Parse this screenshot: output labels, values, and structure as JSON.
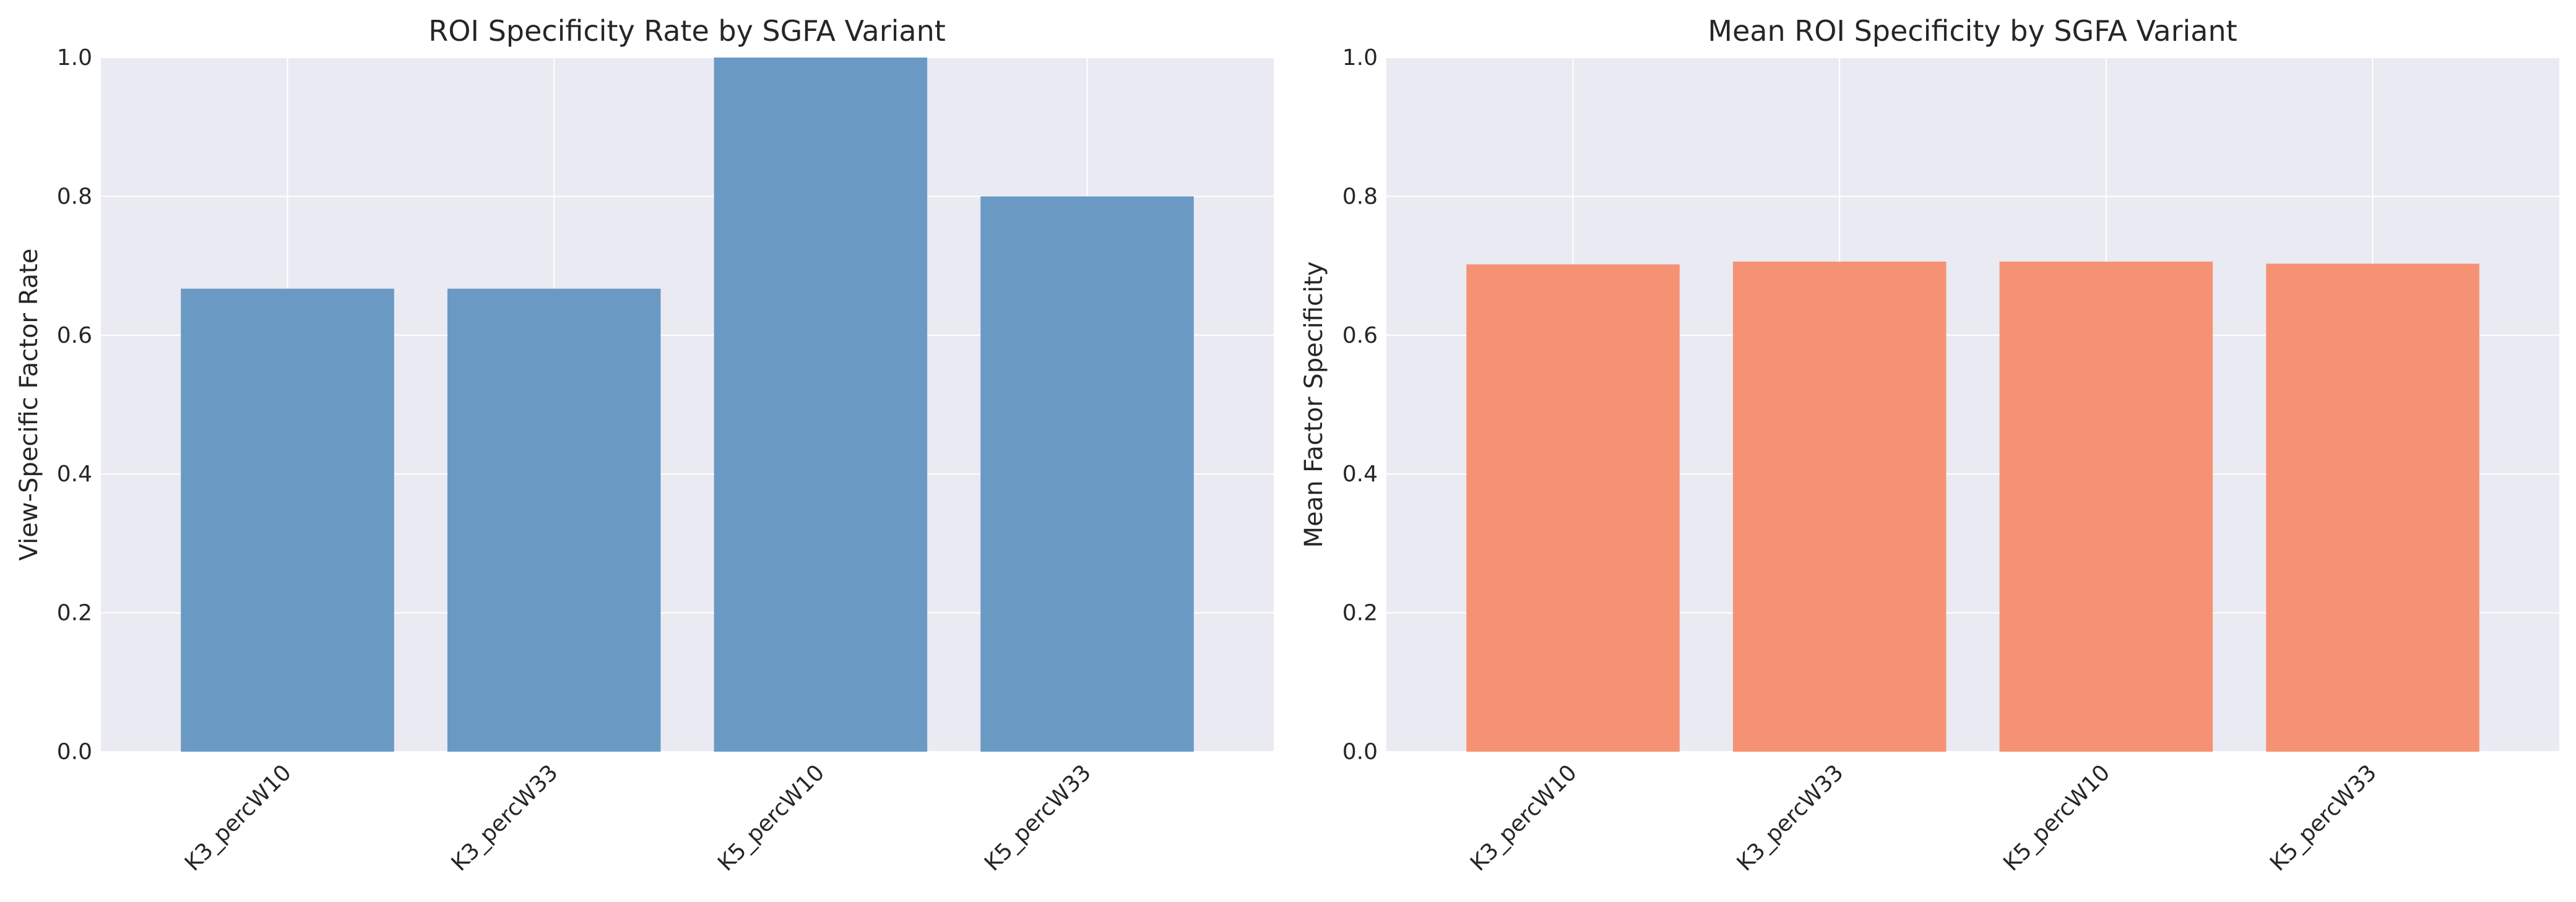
{
  "chart_data": [
    {
      "type": "bar",
      "title": "ROI Specificity Rate by SGFA Variant",
      "xlabel": "",
      "ylabel": "View-Specific Factor Rate",
      "categories": [
        "K3_percW10",
        "K3_percW33",
        "K5_percW10",
        "K5_percW33"
      ],
      "values": [
        0.667,
        0.667,
        1.0,
        0.8
      ],
      "ylim": [
        0,
        1.0
      ],
      "yticks": [
        "0.0",
        "0.2",
        "0.4",
        "0.6",
        "0.8",
        "1.0"
      ],
      "color": "#6a9ac4",
      "grid": true
    },
    {
      "type": "bar",
      "title": "Mean ROI Specificity by SGFA Variant",
      "xlabel": "",
      "ylabel": "Mean Factor Specificity",
      "categories": [
        "K3_percW10",
        "K3_percW33",
        "K5_percW10",
        "K5_percW33"
      ],
      "values": [
        0.702,
        0.706,
        0.706,
        0.703
      ],
      "ylim": [
        0,
        1.0
      ],
      "yticks": [
        "0.0",
        "0.2",
        "0.4",
        "0.6",
        "0.8",
        "1.0"
      ],
      "color": "#f69274",
      "grid": true
    }
  ]
}
